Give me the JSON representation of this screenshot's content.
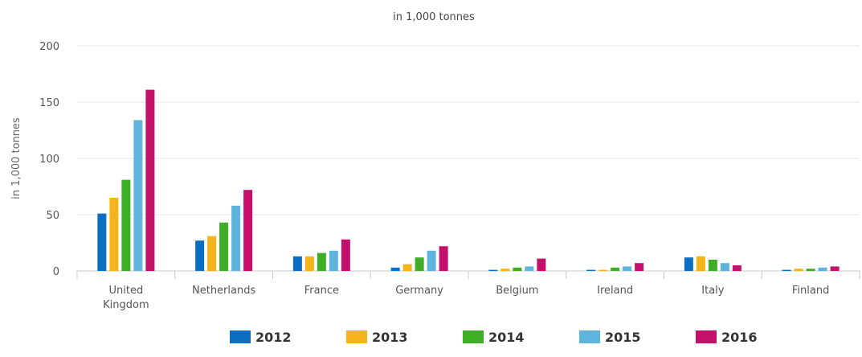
{
  "chart_data": {
    "type": "bar",
    "title": "in 1,000 tonnes",
    "ylabel": "in 1,000 tonnes",
    "ylim": [
      0,
      200
    ],
    "yticks": [
      0,
      50,
      100,
      150,
      200
    ],
    "grid": true,
    "legend_position": "bottom",
    "categories": [
      "United Kingdom",
      "Netherlands",
      "France",
      "Germany",
      "Belgium",
      "Ireland",
      "Italy",
      "Finland"
    ],
    "series": [
      {
        "name": "2012",
        "color": "#0a6fc2",
        "values": [
          51,
          27,
          13,
          3,
          1,
          1,
          12,
          1
        ]
      },
      {
        "name": "2013",
        "color": "#f5b31c",
        "values": [
          65,
          31,
          13,
          6,
          2,
          1,
          13,
          2
        ]
      },
      {
        "name": "2014",
        "color": "#3fae27",
        "values": [
          81,
          43,
          16,
          12,
          3,
          3,
          10,
          2
        ]
      },
      {
        "name": "2015",
        "color": "#5fb4dd",
        "values": [
          134,
          58,
          18,
          18,
          4,
          4,
          7,
          3
        ]
      },
      {
        "name": "2016",
        "color": "#c4106b",
        "values": [
          161,
          72,
          28,
          22,
          11,
          7,
          5,
          4
        ]
      }
    ]
  }
}
